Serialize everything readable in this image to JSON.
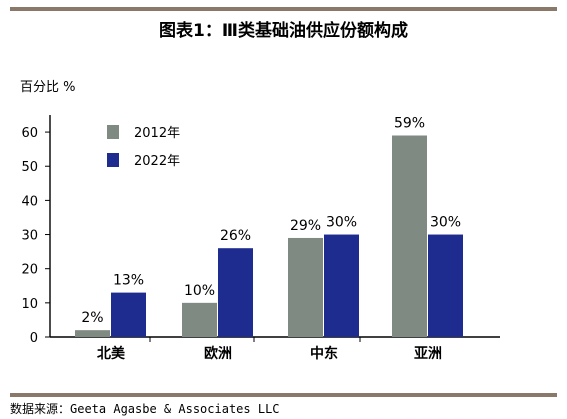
{
  "title": "图表1：Ⅲ类基础油供应份额构成",
  "source": "数据来源：Geeta Agasbe & Associates LLC",
  "chart_data": {
    "type": "bar",
    "ylabel": "百分比 %",
    "ylim": [
      0,
      65
    ],
    "yticks": [
      0,
      10,
      20,
      30,
      40,
      50,
      60
    ],
    "grid": false,
    "legend_position": "top-left",
    "categories": [
      "北美",
      "欧洲",
      "中东",
      "亚洲"
    ],
    "series": [
      {
        "name": "2012年",
        "color": "#7f8a82",
        "values": [
          2,
          10,
          29,
          59
        ],
        "labels": [
          "2%",
          "10%",
          "29%",
          "59%"
        ]
      },
      {
        "name": "2022年",
        "color": "#1e2c8f",
        "values": [
          13,
          26,
          30,
          30
        ],
        "labels": [
          "13%",
          "26%",
          "30%",
          "30%"
        ]
      }
    ]
  }
}
